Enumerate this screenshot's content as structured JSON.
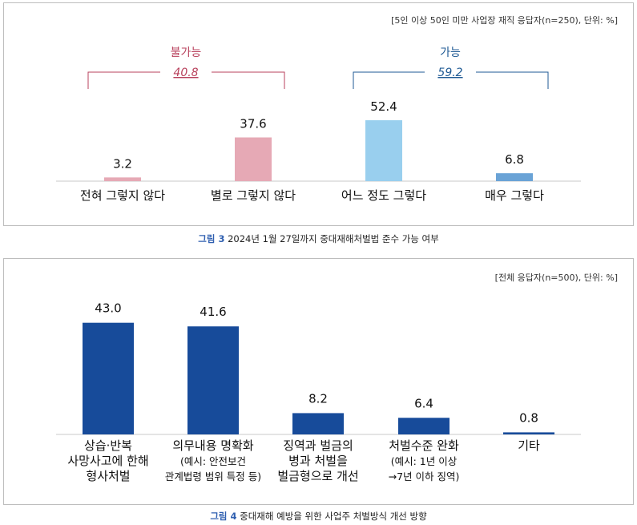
{
  "colors": {
    "negative_bar": "#e6a9b5",
    "negative_text": "#b8415c",
    "positive_bar": "#99cfee",
    "positive_text": "#1f5a94",
    "series4_bar": "#174b9a",
    "fig_label": "#2f5fb0"
  },
  "chart_data": [
    {
      "type": "bar",
      "note": "[5인 이상 50인 미만 사업장 재직 응답자(n=250), 단위: %]",
      "categories": [
        "전혀 그렇지 않다",
        "별로 그렇지 않다",
        "어느 정도 그렇다",
        "매우 그렇다"
      ],
      "values": [
        3.2,
        37.6,
        52.4,
        6.8
      ],
      "value_labels": [
        "3.2",
        "37.6",
        "52.4",
        "6.8"
      ],
      "groups": [
        {
          "label": "불가능",
          "value": "40.8",
          "members": [
            0,
            1
          ]
        },
        {
          "label": "가능",
          "value": "59.2",
          "members": [
            2,
            3
          ]
        }
      ],
      "caption_label": "그림 3",
      "caption_text": "2024년 1월 27일까지 중대재해처벌법 준수 가능 여부"
    },
    {
      "type": "bar",
      "note": "[전체 응답자(n=500), 단위: %]",
      "categories": [
        [
          "상습·반복",
          "사망사고에 한해",
          "형사처벌"
        ],
        [
          "의무내용 명확화",
          "(예시: 안전보건",
          "관계법령 범위 특정 등)"
        ],
        [
          "징역과 벌금의",
          "병과 처벌을",
          "벌금형으로 개선"
        ],
        [
          "처벌수준 완화",
          "(예시: 1년 이상",
          "→7년 이하 징역)"
        ],
        [
          "기타"
        ]
      ],
      "values": [
        43.0,
        41.6,
        8.2,
        6.4,
        0.8
      ],
      "value_labels": [
        "43.0",
        "41.6",
        "8.2",
        "6.4",
        "0.8"
      ],
      "caption_label": "그림 4",
      "caption_text": "중대재해 예방을 위한 사업주 처벌방식 개선 방향"
    }
  ]
}
